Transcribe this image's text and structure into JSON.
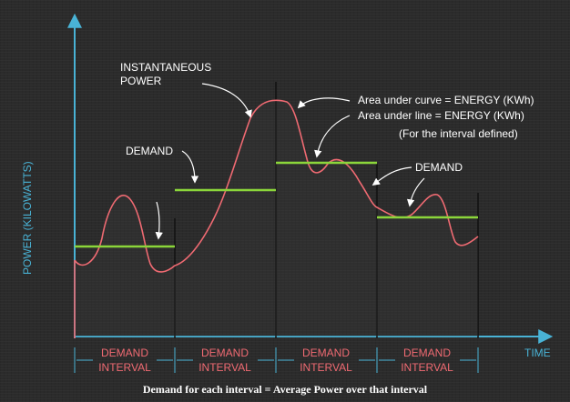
{
  "axes": {
    "y_label": "POWER (KILOWATTS)",
    "x_label": "TIME"
  },
  "labels": {
    "instantaneous_line1": "INSTANTANEOUS",
    "instantaneous_line2": "POWER",
    "demand_left": "DEMAND",
    "demand_right": "DEMAND",
    "area_curve": "Area under curve = ENERGY (KWh)",
    "area_line": "Area under line = ENERGY (KWh)",
    "interval_note": "(For the interval defined)"
  },
  "intervals": [
    {
      "line1": "DEMAND",
      "line2": "INTERVAL"
    },
    {
      "line1": "DEMAND",
      "line2": "INTERVAL"
    },
    {
      "line1": "DEMAND",
      "line2": "INTERVAL"
    },
    {
      "line1": "DEMAND",
      "line2": "INTERVAL"
    }
  ],
  "caption": "Demand for each interval = Average Power over that interval",
  "colors": {
    "axis": "#49b3d6",
    "curve": "#ef6a72",
    "demand_line": "#8bd63a",
    "divider": "#111111",
    "text": "#ffffff"
  }
}
